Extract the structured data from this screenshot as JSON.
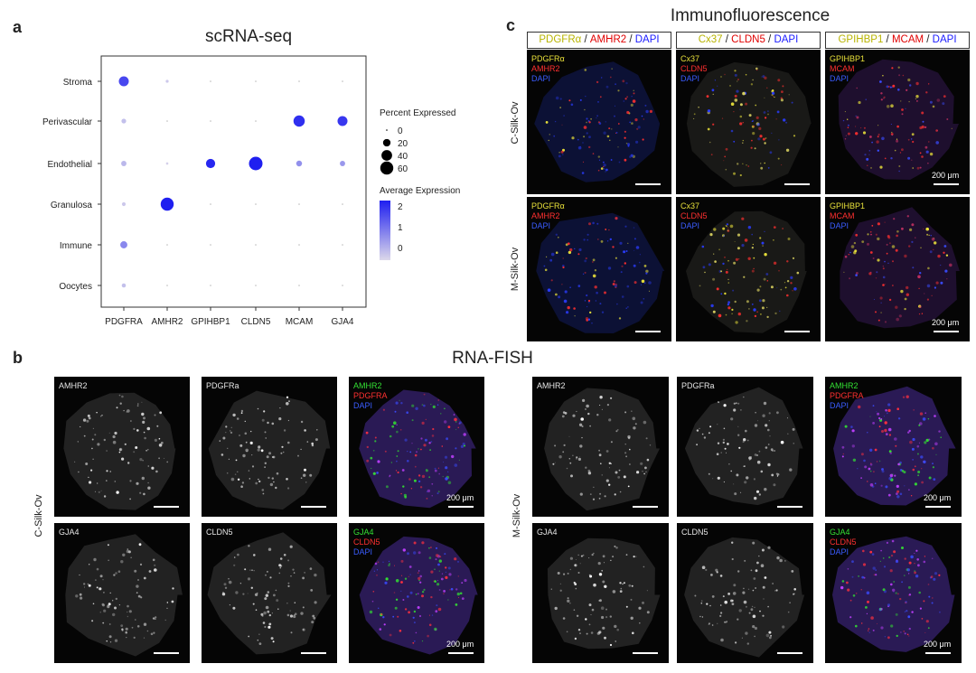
{
  "panel_a": {
    "letter": "a",
    "title": "scRNA-seq",
    "chart_data": {
      "type": "dotplot",
      "title": "scRNA-seq",
      "categories_x": [
        "PDGFRA",
        "AMHR2",
        "GPIHBP1",
        "CLDN5",
        "MCAM",
        "GJA4"
      ],
      "categories_y": [
        "Stroma",
        "Perivascular",
        "Endothelial",
        "Granulosa",
        "Immune",
        "Oocytes"
      ],
      "points": [
        {
          "y": "Stroma",
          "x": "PDGFRA",
          "pct": 35,
          "avg": 1.8
        },
        {
          "y": "Stroma",
          "x": "AMHR2",
          "pct": 3,
          "avg": 0.2
        },
        {
          "y": "Stroma",
          "x": "GPIHBP1",
          "pct": 0,
          "avg": 0
        },
        {
          "y": "Stroma",
          "x": "CLDN5",
          "pct": 0,
          "avg": 0
        },
        {
          "y": "Stroma",
          "x": "MCAM",
          "pct": 0,
          "avg": 0
        },
        {
          "y": "Stroma",
          "x": "GJA4",
          "pct": 0,
          "avg": 0
        },
        {
          "y": "Perivascular",
          "x": "PDGFRA",
          "pct": 8,
          "avg": 0.3
        },
        {
          "y": "Perivascular",
          "x": "AMHR2",
          "pct": 0,
          "avg": 0
        },
        {
          "y": "Perivascular",
          "x": "GPIHBP1",
          "pct": 0,
          "avg": 0
        },
        {
          "y": "Perivascular",
          "x": "CLDN5",
          "pct": 0,
          "avg": 0
        },
        {
          "y": "Perivascular",
          "x": "MCAM",
          "pct": 45,
          "avg": 2.1
        },
        {
          "y": "Perivascular",
          "x": "GJA4",
          "pct": 35,
          "avg": 2.0
        },
        {
          "y": "Endothelial",
          "x": "PDGFRA",
          "pct": 10,
          "avg": 0.4
        },
        {
          "y": "Endothelial",
          "x": "AMHR2",
          "pct": 2,
          "avg": 0.1
        },
        {
          "y": "Endothelial",
          "x": "GPIHBP1",
          "pct": 30,
          "avg": 2.2
        },
        {
          "y": "Endothelial",
          "x": "CLDN5",
          "pct": 65,
          "avg": 2.3
        },
        {
          "y": "Endothelial",
          "x": "MCAM",
          "pct": 12,
          "avg": 0.9
        },
        {
          "y": "Endothelial",
          "x": "GJA4",
          "pct": 10,
          "avg": 0.8
        },
        {
          "y": "Granulosa",
          "x": "PDGFRA",
          "pct": 5,
          "avg": 0.2
        },
        {
          "y": "Granulosa",
          "x": "AMHR2",
          "pct": 60,
          "avg": 2.3
        },
        {
          "y": "Granulosa",
          "x": "GPIHBP1",
          "pct": 0,
          "avg": 0
        },
        {
          "y": "Granulosa",
          "x": "CLDN5",
          "pct": 0,
          "avg": 0
        },
        {
          "y": "Granulosa",
          "x": "MCAM",
          "pct": 0,
          "avg": 0
        },
        {
          "y": "Granulosa",
          "x": "GJA4",
          "pct": 0,
          "avg": 0
        },
        {
          "y": "Immune",
          "x": "PDGFRA",
          "pct": 18,
          "avg": 1.0
        },
        {
          "y": "Immune",
          "x": "AMHR2",
          "pct": 0,
          "avg": 0
        },
        {
          "y": "Immune",
          "x": "GPIHBP1",
          "pct": 0,
          "avg": 0
        },
        {
          "y": "Immune",
          "x": "CLDN5",
          "pct": 0,
          "avg": 0
        },
        {
          "y": "Immune",
          "x": "MCAM",
          "pct": 0,
          "avg": 0
        },
        {
          "y": "Immune",
          "x": "GJA4",
          "pct": 0,
          "avg": 0
        },
        {
          "y": "Oocytes",
          "x": "PDGFRA",
          "pct": 6,
          "avg": 0.3
        },
        {
          "y": "Oocytes",
          "x": "AMHR2",
          "pct": 0,
          "avg": 0
        },
        {
          "y": "Oocytes",
          "x": "GPIHBP1",
          "pct": 0,
          "avg": 0
        },
        {
          "y": "Oocytes",
          "x": "CLDN5",
          "pct": 0,
          "avg": 0
        },
        {
          "y": "Oocytes",
          "x": "MCAM",
          "pct": 0,
          "avg": 0
        },
        {
          "y": "Oocytes",
          "x": "GJA4",
          "pct": 0,
          "avg": 0
        }
      ],
      "size_legend": {
        "title": "Percent Expressed",
        "values": [
          0,
          20,
          40,
          60
        ]
      },
      "color_legend": {
        "title": "Average Expression",
        "ticks": [
          2,
          1,
          0
        ],
        "low_color": "#dcd8ea",
        "high_color": "#1f1ff0"
      }
    }
  },
  "panel_b": {
    "letter": "b",
    "title": "RNA-FISH",
    "rows": [
      "C-Silk-Ov",
      "M-Silk-Ov"
    ],
    "left": {
      "top": [
        {
          "labels": [
            "AMHR2"
          ]
        },
        {
          "labels": [
            "PDGFRa"
          ]
        },
        {
          "labels": [
            "AMHR2",
            "PDGFRA",
            "DAPI"
          ],
          "scale": "200 μm"
        }
      ],
      "bottom": [
        {
          "labels": [
            "GJA4"
          ]
        },
        {
          "labels": [
            "CLDN5"
          ]
        },
        {
          "labels": [
            "GJA4",
            "CLDN5",
            "DAPI"
          ],
          "scale": "200 μm"
        }
      ]
    },
    "right": {
      "top": [
        {
          "labels": [
            "AMHR2"
          ]
        },
        {
          "labels": [
            "PDGFRa"
          ]
        },
        {
          "labels": [
            "AMHR2",
            "PDGFRA",
            "DAPI"
          ],
          "scale": "200 μm"
        }
      ],
      "bottom": [
        {
          "labels": [
            "GJA4"
          ]
        },
        {
          "labels": [
            "CLDN5"
          ]
        },
        {
          "labels": [
            "GJA4",
            "CLDN5",
            "DAPI"
          ],
          "scale": "200 μm"
        }
      ]
    }
  },
  "panel_c": {
    "letter": "c",
    "title": "Immunofluorescence",
    "rows": [
      "C-Silk-Ov",
      "M-Silk-Ov"
    ],
    "headers": [
      [
        "PDGFRα",
        "AMHR2",
        "DAPI"
      ],
      [
        "Cx37",
        "CLDN5",
        "DAPI"
      ],
      [
        "GPIHBP1",
        "MCAM",
        "DAPI"
      ]
    ],
    "separator": " / ",
    "col_labels": [
      [
        "PDGFRα",
        "AMHR2",
        "DAPI"
      ],
      [
        "Cx37",
        "CLDN5",
        "DAPI"
      ],
      [
        "GPIHBP1",
        "MCAM",
        "DAPI"
      ]
    ],
    "scale": "200 μm"
  }
}
